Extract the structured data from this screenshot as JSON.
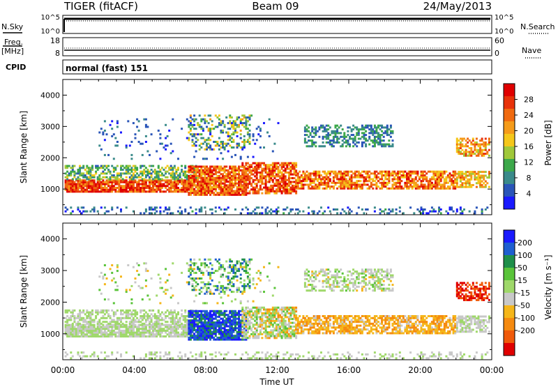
{
  "header": {
    "title": "TIGER (fitACF)",
    "beam": "Beam 09",
    "date": "24/May/2013"
  },
  "status_panel": {
    "nsky_label": "N.Sky",
    "nsearch_label": "N.Search",
    "nsky_ticks": [
      "10^5",
      "10^0"
    ],
    "nsearch_ticks": [
      "10^5",
      "10^0"
    ],
    "freq_label": "Freq.",
    "freq_unit": "[MHz]",
    "freq_ticks": [
      "18",
      "8"
    ],
    "nave_label": "Nave",
    "nave_ticks": [
      "60",
      "0"
    ],
    "cpid_label": "CPID",
    "cpid_value": "normal (fast) 151"
  },
  "chart_data": [
    {
      "type": "heatmap",
      "name": "power-panel",
      "ylabel": "Slant Range [km]",
      "xlabel": "",
      "xlim": [
        0,
        24
      ],
      "ylim": [
        180,
        4500
      ],
      "x_ticks": [
        "00:00",
        "04:00",
        "08:00",
        "12:00",
        "16:00",
        "20:00",
        "00:00"
      ],
      "y_ticks": [
        1000,
        2000,
        3000,
        4000
      ],
      "colorbar": {
        "label": "Power [dB]",
        "range": [
          0,
          32
        ],
        "tick_values": [
          4,
          8,
          12,
          16,
          20,
          24,
          28
        ],
        "colors": [
          "#1a1aff",
          "#2a55b8",
          "#3a8a8a",
          "#3da84a",
          "#a0c83a",
          "#f5c71a",
          "#f59b1a",
          "#f06a10",
          "#e8320a",
          "#e00000"
        ]
      }
    },
    {
      "type": "heatmap",
      "name": "velocity-panel",
      "ylabel": "Slant Range [km]",
      "xlabel": "Time UT",
      "xlim": [
        0,
        24
      ],
      "ylim": [
        180,
        4500
      ],
      "x_ticks": [
        "00:00",
        "04:00",
        "08:00",
        "12:00",
        "16:00",
        "20:00",
        "00:00"
      ],
      "y_ticks": [
        1000,
        2000,
        3000,
        4000
      ],
      "colorbar": {
        "label": "Velocity [m s⁻¹]",
        "range": [
          -250,
          250
        ],
        "tick_labels": [
          "200",
          "100",
          "50",
          "15",
          "-15",
          "-50",
          "-100",
          "-200"
        ],
        "colors": [
          "#1a1aff",
          "#1f5fd0",
          "#1f8f4a",
          "#5ac43a",
          "#9fd86a",
          "#c8c8c8",
          "#f5b61a",
          "#f58a10",
          "#f05a0a",
          "#e00000"
        ]
      }
    }
  ]
}
